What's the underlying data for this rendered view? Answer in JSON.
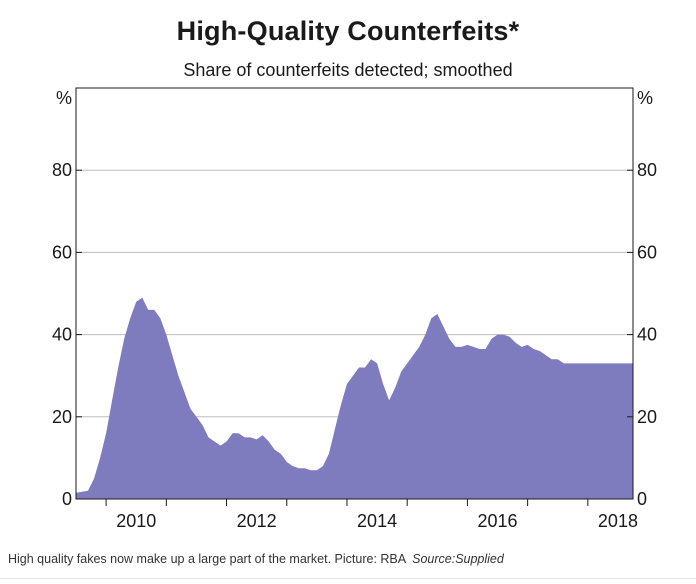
{
  "chart_data": {
    "type": "area",
    "title": "High-Quality Counterfeits*",
    "subtitle": "Share of counterfeits detected; smoothed",
    "y_unit_left": "%",
    "y_unit_right": "%",
    "ylim": [
      0,
      100
    ],
    "yticks": [
      "0",
      "20",
      "40",
      "60",
      "80"
    ],
    "xlim": [
      2009.5,
      2018.75
    ],
    "xticks": [
      "2010",
      "2012",
      "2014",
      "2016",
      "2018"
    ],
    "grid": true,
    "fill_color": "#7f7bbf",
    "series": [
      {
        "x": [
          2009.5,
          2009.7,
          2009.8,
          2009.9,
          2010.0,
          2010.1,
          2010.2,
          2010.3,
          2010.4,
          2010.5,
          2010.6,
          2010.7,
          2010.75,
          2010.8,
          2010.9,
          2011.0,
          2011.1,
          2011.2,
          2011.3,
          2011.4,
          2011.5,
          2011.6,
          2011.7,
          2011.8,
          2011.9,
          2012.0,
          2012.1,
          2012.2,
          2012.3,
          2012.4,
          2012.5,
          2012.6,
          2012.7,
          2012.8,
          2012.9,
          2013.0,
          2013.1,
          2013.2,
          2013.3,
          2013.4,
          2013.5,
          2013.6,
          2013.7,
          2013.8,
          2013.9,
          2014.0,
          2014.1,
          2014.2,
          2014.3,
          2014.4,
          2014.5,
          2014.6,
          2014.7,
          2014.8,
          2014.9,
          2015.0,
          2015.1,
          2015.2,
          2015.3,
          2015.4,
          2015.5,
          2015.6,
          2015.7,
          2015.8,
          2015.9,
          2016.0,
          2016.1,
          2016.2,
          2016.3,
          2016.4,
          2016.5,
          2016.6,
          2016.7,
          2016.8,
          2016.9,
          2017.0,
          2017.1,
          2017.2,
          2017.3,
          2017.4,
          2017.5,
          2017.6,
          2017.7,
          2017.8,
          2017.9,
          2018.0,
          2018.1,
          2018.2,
          2018.3,
          2018.4,
          2018.5,
          2018.6,
          2018.75
        ],
        "values": [
          1.5,
          2,
          5,
          10,
          16,
          24,
          32,
          39,
          44,
          48,
          49,
          46,
          46,
          46,
          44,
          40,
          35,
          30,
          26,
          22,
          20,
          18,
          15,
          14,
          13,
          14,
          16,
          16,
          15,
          15,
          14.5,
          15.5,
          14,
          12,
          11,
          9,
          8,
          7.5,
          7.5,
          7,
          7,
          8,
          11,
          17,
          23,
          28,
          30,
          32,
          32,
          34,
          33,
          28,
          24,
          27,
          31,
          33,
          35,
          37,
          40,
          44,
          45,
          42,
          39,
          37,
          37,
          37.5,
          37,
          36.5,
          36.5,
          39,
          40,
          40,
          39.5,
          38,
          37,
          37.5,
          36.5,
          36,
          35,
          34,
          34,
          33,
          33,
          33,
          33,
          33,
          33,
          33,
          33,
          33,
          33,
          33,
          33
        ]
      }
    ]
  },
  "caption": {
    "text": "High quality fakes now make up a large part of the market. Picture: RBA",
    "source": "Source:Supplied"
  }
}
